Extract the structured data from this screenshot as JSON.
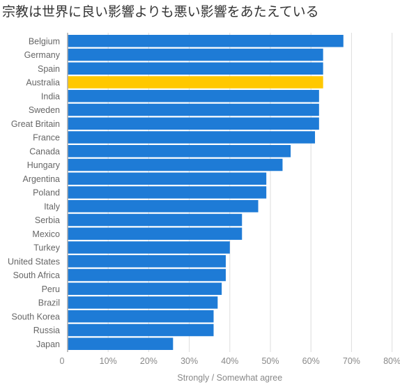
{
  "chart_data": {
    "type": "bar",
    "orientation": "horizontal",
    "title": "宗教は世界に良い影響よりも悪い影響をあたえている",
    "xlabel": "Strongly / Somewhat agree",
    "ylabel": "",
    "xlim": [
      0,
      80
    ],
    "x_ticks": [
      "0",
      "10%",
      "20%",
      "30%",
      "40%",
      "50%",
      "60%",
      "70%",
      "80%"
    ],
    "grid": true,
    "categories": [
      "Belgium",
      "Germany",
      "Spain",
      "Australia",
      "India",
      "Sweden",
      "Great Britain",
      "France",
      "Canada",
      "Hungary",
      "Argentina",
      "Poland",
      "Italy",
      "Serbia",
      "Mexico",
      "Turkey",
      "United States",
      "South Africa",
      "Peru",
      "Brazil",
      "South Korea",
      "Russia",
      "Japan"
    ],
    "values": [
      68,
      63,
      63,
      63,
      62,
      62,
      62,
      61,
      55,
      53,
      49,
      49,
      47,
      43,
      43,
      40,
      39,
      39,
      38,
      37,
      36,
      36,
      26
    ],
    "bar_color": "#1e7bd6",
    "highlight_category": "Australia",
    "highlight_color": "#ffc800"
  }
}
